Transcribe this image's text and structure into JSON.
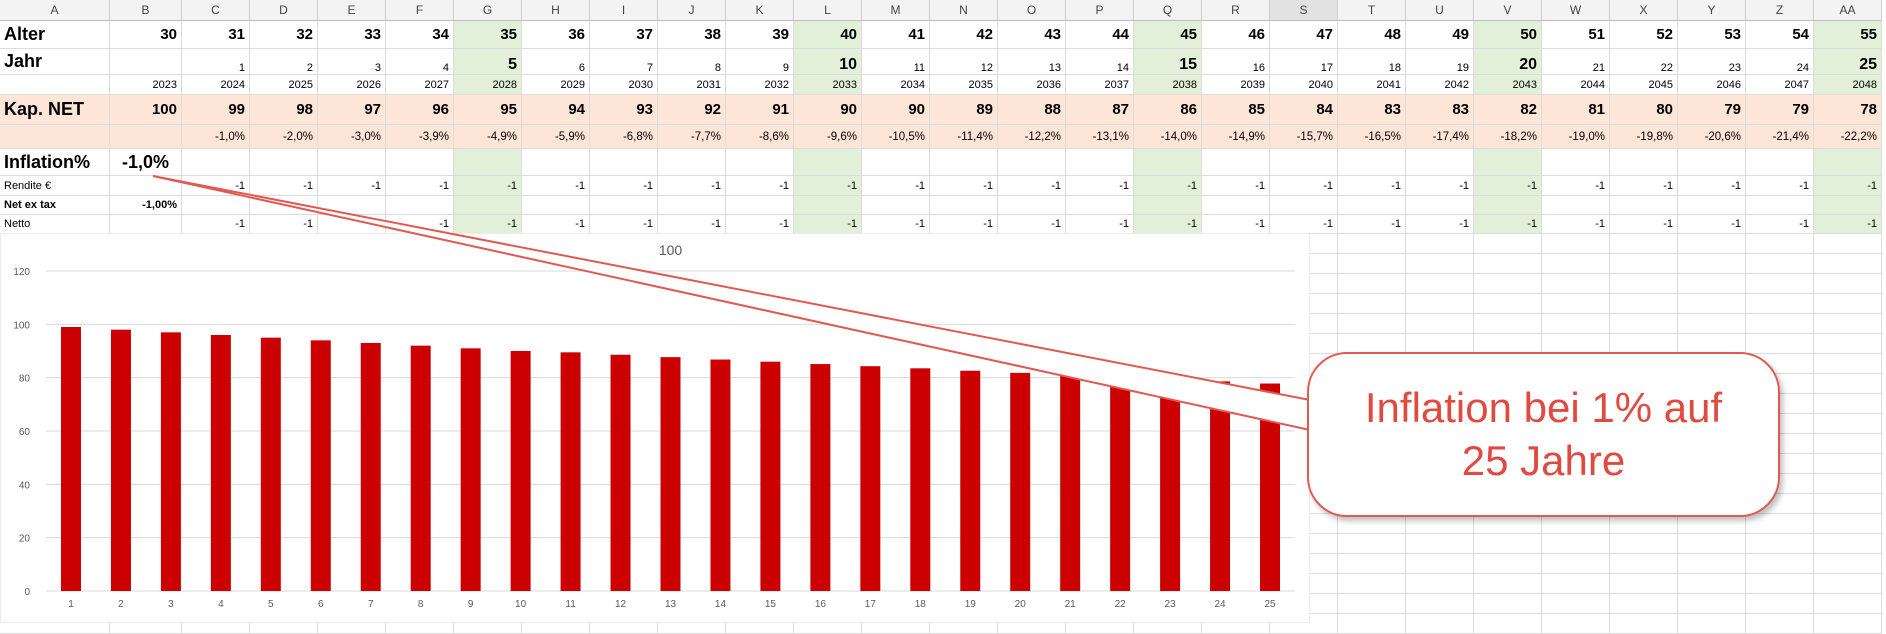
{
  "column_headers": [
    "A",
    "B",
    "C",
    "D",
    "E",
    "F",
    "G",
    "H",
    "I",
    "J",
    "K",
    "L",
    "M",
    "N",
    "O",
    "P",
    "Q",
    "R",
    "S",
    "T",
    "U",
    "V",
    "W",
    "X",
    "Y",
    "Z",
    "AA"
  ],
  "selected_column": "S",
  "highlight_columns": [
    "G",
    "L",
    "Q",
    "V",
    "AA"
  ],
  "colors": {
    "peach": "#fde5d8",
    "green": "#e2f0d9",
    "bar": "#cc0000",
    "callout_text": "#e04a40",
    "callout_border": "#e15a51"
  },
  "rows": {
    "alter": {
      "label": "Alter",
      "values": [
        "30",
        "31",
        "32",
        "33",
        "34",
        "35",
        "36",
        "37",
        "38",
        "39",
        "40",
        "41",
        "42",
        "43",
        "44",
        "45",
        "46",
        "47",
        "48",
        "49",
        "50",
        "51",
        "52",
        "53",
        "54",
        "55"
      ]
    },
    "jahr": {
      "label": "Jahr",
      "values": [
        "",
        "1",
        "2",
        "3",
        "4",
        "5",
        "6",
        "7",
        "8",
        "9",
        "10",
        "11",
        "12",
        "13",
        "14",
        "15",
        "16",
        "17",
        "18",
        "19",
        "20",
        "21",
        "22",
        "23",
        "24",
        "25"
      ]
    },
    "year": {
      "label": "",
      "values": [
        "2023",
        "2024",
        "2025",
        "2026",
        "2027",
        "2028",
        "2029",
        "2030",
        "2031",
        "2032",
        "2033",
        "2034",
        "2035",
        "2036",
        "2037",
        "2038",
        "2039",
        "2040",
        "2041",
        "2042",
        "2043",
        "2044",
        "2045",
        "2046",
        "2047",
        "2048"
      ]
    },
    "kap": {
      "label": "Kap. NET",
      "values": [
        "100",
        "99",
        "98",
        "97",
        "96",
        "95",
        "94",
        "93",
        "92",
        "91",
        "90",
        "90",
        "89",
        "88",
        "87",
        "86",
        "85",
        "84",
        "83",
        "83",
        "82",
        "81",
        "80",
        "79",
        "79",
        "78"
      ]
    },
    "kap_pct": {
      "label": "",
      "values": [
        "",
        "-1,0%",
        "-2,0%",
        "-3,0%",
        "-3,9%",
        "-4,9%",
        "-5,9%",
        "-6,8%",
        "-7,7%",
        "-8,6%",
        "-9,6%",
        "-10,5%",
        "-11,4%",
        "-12,2%",
        "-13,1%",
        "-14,0%",
        "-14,9%",
        "-15,7%",
        "-16,5%",
        "-17,4%",
        "-18,2%",
        "-19,0%",
        "-19,8%",
        "-20,6%",
        "-21,4%",
        "-22,2%"
      ]
    },
    "inflation": {
      "label": "Inflation%",
      "value": "-1,0%"
    },
    "rendite": {
      "label": "Rendite €",
      "values": [
        "",
        "-1",
        "-1",
        "-1",
        "-1",
        "-1",
        "-1",
        "-1",
        "-1",
        "-1",
        "-1",
        "-1",
        "-1",
        "-1",
        "-1",
        "-1",
        "-1",
        "-1",
        "-1",
        "-1",
        "-1",
        "-1",
        "-1",
        "-1",
        "-1",
        "-1"
      ]
    },
    "netextax": {
      "label": "Net ex tax",
      "value": "-1,00%"
    },
    "netto": {
      "label": "Netto",
      "values": [
        "",
        "-1",
        "-1",
        "",
        "-1",
        "-1",
        "-1",
        "-1",
        "-1",
        "-1",
        "-1",
        "-1",
        "-1",
        "-1",
        "-1",
        "-1",
        "-1",
        "-1",
        "-1",
        "-1",
        "-1",
        "-1",
        "-1",
        "-1",
        "-1",
        "-1"
      ]
    }
  },
  "chart_data": {
    "type": "bar",
    "title": "100",
    "categories": [
      "1",
      "2",
      "3",
      "4",
      "5",
      "6",
      "7",
      "8",
      "9",
      "10",
      "11",
      "12",
      "13",
      "14",
      "15",
      "16",
      "17",
      "18",
      "19",
      "20",
      "21",
      "22",
      "23",
      "24",
      "25"
    ],
    "values": [
      99,
      98,
      97,
      96,
      95,
      94,
      93,
      92,
      91,
      90,
      89.5,
      88.6,
      87.7,
      86.8,
      86,
      85.1,
      84.3,
      83.5,
      82.6,
      81.8,
      81,
      80.2,
      79.4,
      78.6,
      77.8
    ],
    "ylim": [
      0,
      120
    ],
    "yticks": [
      "0",
      "20",
      "40",
      "60",
      "80",
      "100",
      "120"
    ],
    "grid": true,
    "legend": "none"
  },
  "callout": {
    "line1": "Inflation bei 1% auf",
    "line2": "25 Jahre"
  }
}
